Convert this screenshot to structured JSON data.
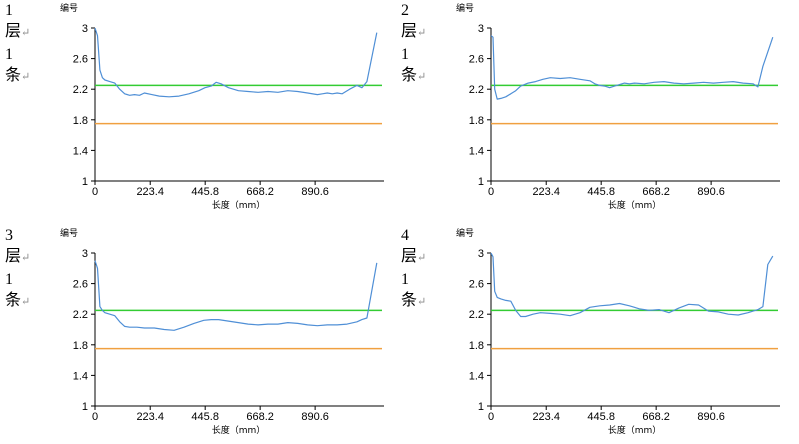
{
  "axes": {
    "ylabel": "编号",
    "xlabel": "长度（mm）",
    "yticks": [
      "3",
      "2.6",
      "2.2",
      "1.8",
      "1.4",
      "1"
    ],
    "xticks": [
      "0",
      "223.4",
      "445.8",
      "668.2",
      "890.6"
    ]
  },
  "return_mark": "↵",
  "colors": {
    "series": "#4f8fd6",
    "upper_ref": "#33cc33",
    "lower_ref": "#f0a040",
    "axis": "#000000"
  },
  "chart_data": [
    {
      "type": "line",
      "side_label": {
        "num": "1",
        "ceng": "层",
        "num2": "1",
        "tiao": "条"
      },
      "ylim": [
        1,
        3
      ],
      "xlim": [
        0,
        1145
      ],
      "reference_lines": [
        2.25,
        1.75
      ],
      "x": [
        0,
        10,
        20,
        30,
        40,
        60,
        80,
        100,
        120,
        140,
        160,
        180,
        200,
        230,
        260,
        300,
        340,
        380,
        420,
        445,
        470,
        490,
        510,
        540,
        580,
        620,
        660,
        700,
        740,
        780,
        820,
        860,
        900,
        920,
        940,
        960,
        980,
        1000,
        1030,
        1060,
        1080,
        1100,
        1140
      ],
      "y": [
        3.0,
        2.9,
        2.45,
        2.35,
        2.32,
        2.3,
        2.28,
        2.2,
        2.14,
        2.12,
        2.13,
        2.12,
        2.15,
        2.13,
        2.11,
        2.1,
        2.11,
        2.14,
        2.18,
        2.22,
        2.24,
        2.29,
        2.27,
        2.22,
        2.18,
        2.17,
        2.16,
        2.17,
        2.16,
        2.18,
        2.17,
        2.15,
        2.13,
        2.14,
        2.15,
        2.14,
        2.15,
        2.14,
        2.2,
        2.25,
        2.22,
        2.3,
        2.94
      ]
    },
    {
      "type": "line",
      "side_label": {
        "num": "2",
        "ceng": "层",
        "num2": "1",
        "tiao": "条"
      },
      "ylim": [
        1,
        3
      ],
      "xlim": [
        0,
        1145
      ],
      "reference_lines": [
        2.25,
        1.75
      ],
      "x": [
        0,
        8,
        15,
        25,
        40,
        60,
        80,
        100,
        120,
        150,
        180,
        210,
        240,
        280,
        320,
        360,
        400,
        420,
        440,
        460,
        480,
        500,
        520,
        540,
        560,
        580,
        620,
        660,
        700,
        740,
        780,
        820,
        860,
        900,
        940,
        980,
        1020,
        1060,
        1080,
        1100,
        1140
      ],
      "y": [
        2.9,
        2.88,
        2.2,
        2.07,
        2.08,
        2.1,
        2.14,
        2.18,
        2.24,
        2.28,
        2.3,
        2.33,
        2.35,
        2.34,
        2.35,
        2.33,
        2.31,
        2.27,
        2.25,
        2.24,
        2.22,
        2.24,
        2.26,
        2.28,
        2.27,
        2.28,
        2.27,
        2.29,
        2.3,
        2.28,
        2.27,
        2.28,
        2.29,
        2.28,
        2.29,
        2.3,
        2.28,
        2.27,
        2.23,
        2.5,
        2.88
      ]
    },
    {
      "type": "line",
      "side_label": {
        "num": "3",
        "ceng": "层",
        "num2": "1",
        "tiao": "条"
      },
      "ylim": [
        1,
        3
      ],
      "xlim": [
        0,
        1145
      ],
      "reference_lines": [
        2.25,
        1.75
      ],
      "x": [
        0,
        10,
        20,
        30,
        40,
        60,
        80,
        100,
        120,
        140,
        170,
        200,
        240,
        280,
        320,
        360,
        400,
        440,
        470,
        500,
        540,
        580,
        620,
        660,
        700,
        740,
        780,
        820,
        860,
        900,
        940,
        980,
        1020,
        1060,
        1080,
        1100,
        1140
      ],
      "y": [
        2.9,
        2.8,
        2.3,
        2.25,
        2.22,
        2.2,
        2.18,
        2.1,
        2.04,
        2.03,
        2.03,
        2.02,
        2.02,
        2.0,
        1.99,
        2.03,
        2.08,
        2.12,
        2.13,
        2.13,
        2.11,
        2.09,
        2.07,
        2.06,
        2.07,
        2.07,
        2.09,
        2.08,
        2.06,
        2.05,
        2.06,
        2.06,
        2.07,
        2.1,
        2.13,
        2.15,
        2.87
      ]
    },
    {
      "type": "line",
      "side_label": {
        "num": "4",
        "ceng": "层",
        "num2": "1",
        "tiao": "条"
      },
      "ylim": [
        1,
        3
      ],
      "xlim": [
        0,
        1145
      ],
      "reference_lines": [
        2.25,
        1.75
      ],
      "x": [
        0,
        8,
        15,
        25,
        40,
        60,
        80,
        100,
        120,
        140,
        170,
        200,
        240,
        280,
        320,
        360,
        400,
        440,
        480,
        520,
        560,
        600,
        640,
        680,
        720,
        760,
        800,
        840,
        880,
        920,
        960,
        1000,
        1040,
        1080,
        1100,
        1120,
        1140
      ],
      "y": [
        3.0,
        2.95,
        2.5,
        2.42,
        2.4,
        2.38,
        2.37,
        2.25,
        2.17,
        2.17,
        2.2,
        2.22,
        2.21,
        2.2,
        2.18,
        2.22,
        2.29,
        2.31,
        2.32,
        2.34,
        2.31,
        2.27,
        2.25,
        2.26,
        2.22,
        2.28,
        2.33,
        2.32,
        2.24,
        2.23,
        2.2,
        2.19,
        2.22,
        2.26,
        2.3,
        2.85,
        2.96
      ]
    }
  ]
}
